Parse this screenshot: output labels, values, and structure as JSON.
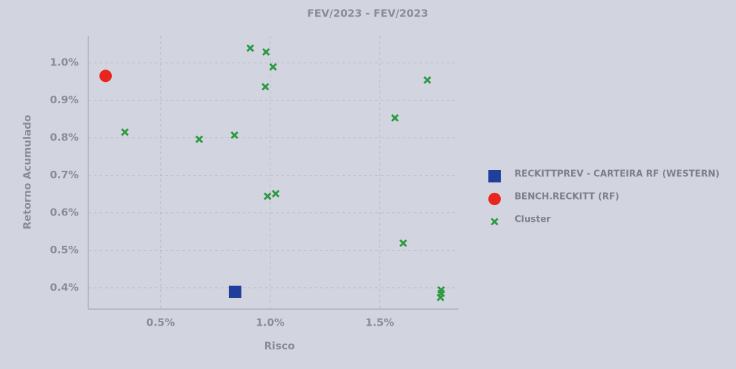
{
  "chart_data": {
    "type": "scatter",
    "title": "FEV/2023 - FEV/2023",
    "x_label": "Risco",
    "y_label": "Retorno Acumulado",
    "xlim": [
      0.17,
      1.86
    ],
    "ylim": [
      0.343,
      1.072
    ],
    "xticks": [
      {
        "value": 0.5,
        "label": "0.5%"
      },
      {
        "value": 1.0,
        "label": "1.0%"
      },
      {
        "value": 1.5,
        "label": "1.5%"
      }
    ],
    "yticks": [
      {
        "value": 0.4,
        "label": "0.4%"
      },
      {
        "value": 0.5,
        "label": "0.5%"
      },
      {
        "value": 0.6,
        "label": "0.6%"
      },
      {
        "value": 0.7,
        "label": "0.7%"
      },
      {
        "value": 0.8,
        "label": "0.8%"
      },
      {
        "value": 0.9,
        "label": "0.9%"
      },
      {
        "value": 1.0,
        "label": "1.0%"
      }
    ],
    "grid": true,
    "legend": "right",
    "series": [
      {
        "name": "RECKITTPREV - CARTEIRA RF (WESTERN)",
        "color": "#1f3f9a",
        "marker": "square",
        "x": [
          0.84
        ],
        "values": [
          0.389
        ]
      },
      {
        "name": "BENCH.RECKITT (RF)",
        "color": "#e8251f",
        "marker": "circle",
        "x": [
          0.249
        ],
        "values": [
          0.965
        ]
      },
      {
        "name": "Cluster",
        "color": "#2e9a3f",
        "marker": "x",
        "x": [
          0.909,
          0.981,
          1.013,
          0.978,
          1.717,
          1.569,
          0.337,
          0.676,
          0.837,
          0.988,
          1.025,
          1.607,
          1.78,
          1.78,
          1.777
        ],
        "values": [
          1.039,
          1.029,
          0.989,
          0.936,
          0.954,
          0.853,
          0.815,
          0.796,
          0.807,
          0.644,
          0.651,
          0.519,
          0.394,
          0.385,
          0.374
        ]
      }
    ]
  }
}
